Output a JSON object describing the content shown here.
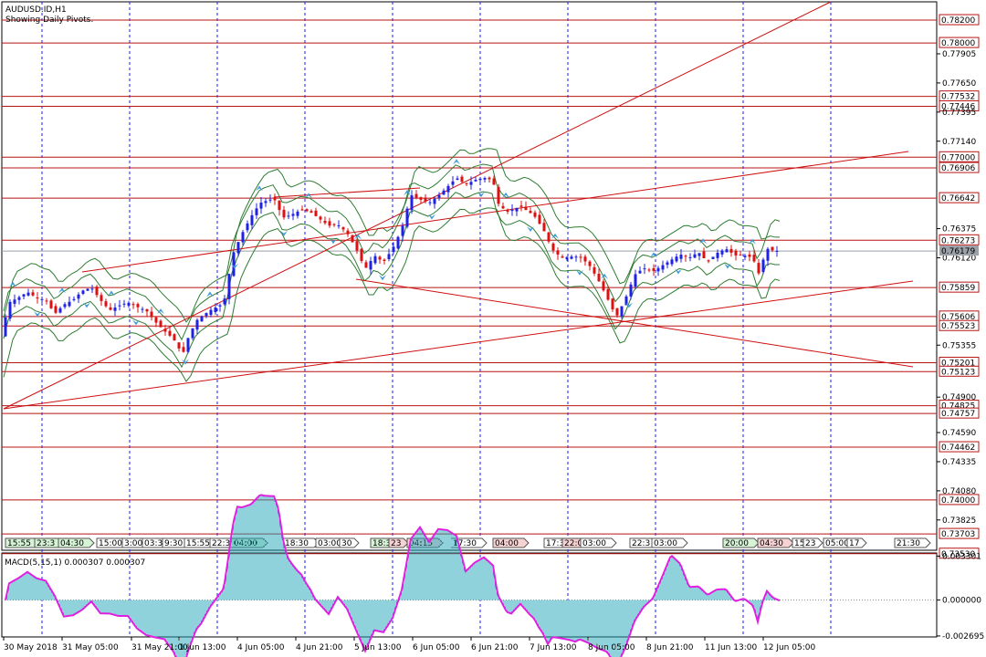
{
  "chart_data": {
    "type": "candlestick",
    "symbol_header": "AUDUSD.ID,H1",
    "subheader": "Showing Daily Pivots.",
    "price_axis": {
      "ylim": [
        0.7356,
        0.7836
      ],
      "ticks": [
        0.77905,
        0.7765,
        0.77395,
        0.7714,
        0.76375,
        0.7612,
        0.75355,
        0.749,
        0.7459,
        0.74335,
        0.7408,
        0.73825
      ]
    },
    "horizontal_levels": [
      0.782,
      0.78,
      0.77532,
      0.77446,
      0.77,
      0.76906,
      0.76642,
      0.76273,
      0.75859,
      0.75606,
      0.75523,
      0.75201,
      0.75123,
      0.74825,
      0.74757,
      0.74462,
      0.74,
      0.73703,
      0.7353
    ],
    "level_labels": [
      "0.78200",
      "0.78000",
      "0.77532",
      "0.77446",
      "0.77000",
      "0.76906",
      "0.76642",
      "0.76273",
      "0.75859",
      "0.75606",
      "0.75523",
      "0.75201",
      "0.75123",
      "0.74825",
      "0.74757",
      "0.74462",
      "0.74000",
      "0.73703",
      "0.73530"
    ],
    "current_price": 0.76179,
    "current_price_label": "0.76179",
    "time_axis_labels": [
      "30 May 2018",
      "31 May 05:00",
      "31 May 21:00",
      "1 Jun 13:00",
      "4 Jun 05:00",
      "4 Jun 21:00",
      "5 Jun 13:00",
      "6 Jun 05:00",
      "6 Jun 21:00",
      "7 Jun 13:00",
      "8 Jun 05:00",
      "8 Jun 21:00",
      "11 Jun 13:00",
      "12 Jun 05:00"
    ],
    "pivot_markers": [
      {
        "text": "15:55",
        "style": "green"
      },
      {
        "text": "23:3",
        "style": "green"
      },
      {
        "text": "04:30",
        "style": "green"
      },
      {
        "text": "15:00",
        "style": "plain"
      },
      {
        "text": "3:00",
        "style": "plain"
      },
      {
        "text": "03:30",
        "style": "plain"
      },
      {
        "text": "9:30",
        "style": "plain"
      },
      {
        "text": "15:55",
        "style": "plain"
      },
      {
        "text": "22:3",
        "style": "plain"
      },
      {
        "text": "04:00",
        "style": "green"
      },
      {
        "text": "18:30",
        "style": "plain"
      },
      {
        "text": "03:00",
        "style": "plain"
      },
      {
        "text": "30",
        "style": "plain"
      },
      {
        "text": "18:3",
        "style": "green"
      },
      {
        "text": "23",
        "style": "red"
      },
      {
        "text": "04:15",
        "style": "red"
      },
      {
        "text": "17:30",
        "style": "plain"
      },
      {
        "text": "04:00",
        "style": "red"
      },
      {
        "text": "17:3",
        "style": "plain"
      },
      {
        "text": "22:0",
        "style": "red"
      },
      {
        "text": "03:00",
        "style": "plain"
      },
      {
        "text": "22:3",
        "style": "plain"
      },
      {
        "text": "03:00",
        "style": "plain"
      },
      {
        "text": "20:00",
        "style": "green"
      },
      {
        "text": "04:30",
        "style": "red"
      },
      {
        "text": "15",
        "style": "plain"
      },
      {
        "text": "23",
        "style": "plain"
      },
      {
        "text": "05:00",
        "style": "plain"
      },
      {
        "text": "17",
        "style": "plain"
      },
      {
        "text": "21:30",
        "style": "plain"
      }
    ],
    "macd": {
      "title": "MACD(5,15,1) 0.000307 0.000307",
      "ylim": [
        -0.0027,
        0.0034
      ],
      "ticks": [
        0.003301,
        0.0,
        -0.002695
      ],
      "tick_labels": [
        "0.003301",
        "0.000000",
        "-0.002695"
      ],
      "zero_label_style": "dotted"
    },
    "colors": {
      "up_candle": "#1e22e6",
      "down_candle": "#dd1111",
      "bollinger": "#2e7d32",
      "trendline": "#d01010",
      "grid": "#1a1aff",
      "macd_hist": "#22a6b8",
      "macd_signal": "#e020e0",
      "fractal": "#3b9bdc"
    }
  }
}
